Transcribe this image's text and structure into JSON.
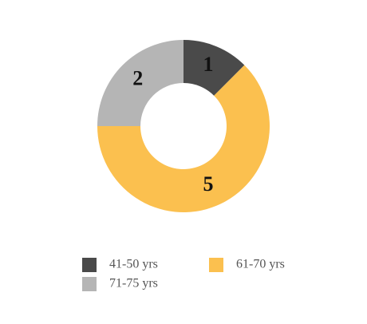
{
  "chart_data": {
    "type": "donut",
    "categories": [
      "41-50 yrs",
      "61-70 yrs",
      "71-75 yrs"
    ],
    "values": [
      1,
      5,
      2
    ],
    "colors": [
      "#4a4a4a",
      "#fbc04f",
      "#b5b5b5"
    ]
  }
}
